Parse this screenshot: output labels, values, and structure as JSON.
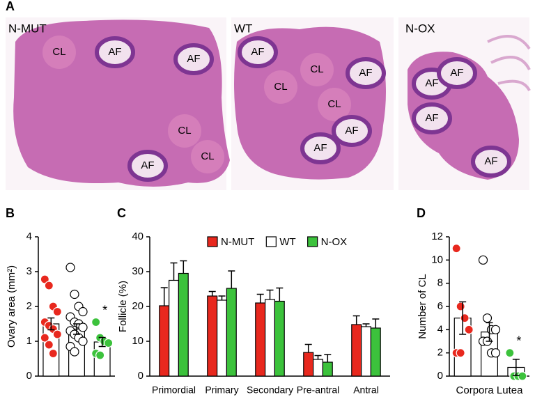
{
  "panel_a": {
    "letter": "A",
    "images": [
      {
        "title": "N-MUT",
        "labels": [
          "CL",
          "AF",
          "AF",
          "CL",
          "CL",
          "AF"
        ]
      },
      {
        "title": "WT",
        "labels": [
          "AF",
          "CL",
          "AF",
          "CL",
          "CL",
          "AF",
          "AF"
        ]
      },
      {
        "title": "N-OX",
        "labels": [
          "AF",
          "AF",
          "AF",
          "AF"
        ]
      }
    ]
  },
  "chart_data": [
    {
      "type": "bar",
      "letter": "B",
      "y_label": "Ovary area (mm²)",
      "ylim": [
        0,
        4
      ],
      "yticks": [
        0,
        1,
        2,
        3,
        4
      ],
      "bar_color": "#ffffff",
      "annotation": "*",
      "bars": [
        {
          "value": 1.5,
          "error": 0.17,
          "color": "#e8281e",
          "points": [
            2.78,
            2.6,
            2.0,
            1.85,
            1.55,
            1.45,
            1.35,
            1.2,
            1.1,
            0.9,
            0.65
          ]
        },
        {
          "value": 1.35,
          "error": 0.15,
          "color": "#ffffff",
          "points": [
            3.12,
            2.35,
            2.0,
            1.85,
            1.7,
            1.55,
            1.5,
            1.4,
            1.3,
            1.2,
            1.1,
            1.0,
            0.85,
            0.7
          ]
        },
        {
          "value": 0.98,
          "error": 0.13,
          "color": "#3cc23c",
          "points": [
            1.55,
            1.1,
            1.0,
            0.95,
            0.65,
            0.6
          ]
        }
      ]
    },
    {
      "type": "bar",
      "letter": "C",
      "y_label": "Follicle (%)",
      "ylim": [
        0,
        40
      ],
      "yticks": [
        0,
        10,
        20,
        30,
        40
      ],
      "categories": [
        "Primordial",
        "Primary",
        "Secondary",
        "Pre-antral",
        "Antral"
      ],
      "series": [
        {
          "name": "N-MUT",
          "color": "#e8281e",
          "values": [
            20.2,
            23,
            21,
            6.8,
            14.8
          ],
          "errors": [
            5.2,
            1.3,
            2.5,
            2.3,
            2.5
          ]
        },
        {
          "name": "WT",
          "color": "#ffffff",
          "values": [
            27.5,
            21.8,
            22,
            4.8,
            14.2
          ],
          "errors": [
            5,
            1.2,
            2.7,
            1.1,
            0.8
          ]
        },
        {
          "name": "N-OX",
          "color": "#3cc23c",
          "values": [
            29.5,
            25.2,
            21.5,
            4,
            13.8
          ],
          "errors": [
            3.6,
            5,
            3.8,
            2.2,
            2.6
          ]
        }
      ]
    },
    {
      "type": "bar",
      "letter": "D",
      "y_label": "Number of CL",
      "x_label": "Corpora Lutea",
      "ylim": [
        0,
        12
      ],
      "yticks": [
        0,
        2,
        4,
        6,
        8,
        10,
        12
      ],
      "bar_color": "#ffffff",
      "annotation": "*",
      "bars": [
        {
          "value": 5,
          "error": 1.4,
          "color": "#e8281e",
          "points": [
            11,
            6,
            5,
            4,
            2,
            2
          ]
        },
        {
          "value": 3.8,
          "error": 0.8,
          "color": "#ffffff",
          "points": [
            10,
            5,
            4,
            4,
            3,
            3,
            2,
            2
          ]
        },
        {
          "value": 0.75,
          "error": 0.7,
          "color": "#3cc23c",
          "points": [
            2,
            0,
            0,
            0
          ]
        }
      ]
    }
  ]
}
